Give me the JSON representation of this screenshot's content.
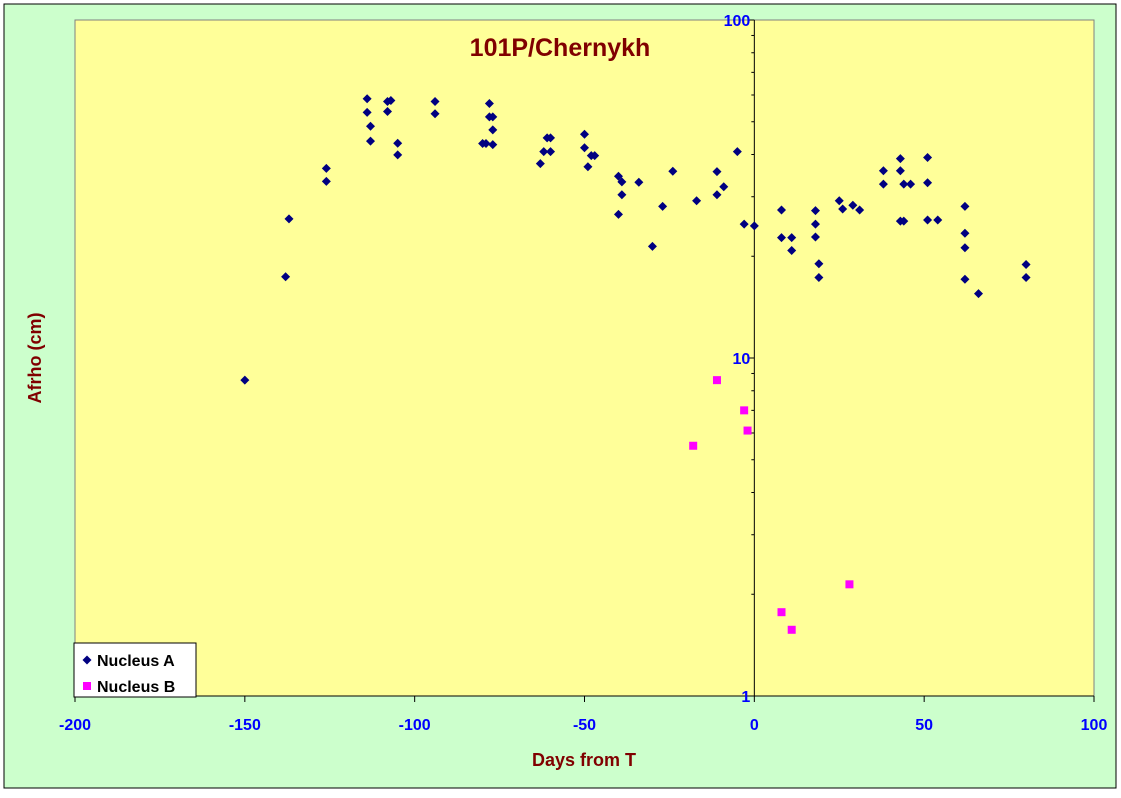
{
  "chart_data": {
    "type": "scatter",
    "title": "101P/Chernykh",
    "xlabel": "Days from T",
    "ylabel": "Afrho (cm)",
    "xlim": [
      -200,
      100
    ],
    "ylim": [
      1,
      100
    ],
    "yscale": "log",
    "x_ticks": [
      -200,
      -150,
      -100,
      -50,
      0,
      50,
      100
    ],
    "y_ticks": [
      1,
      10,
      100
    ],
    "grid": false,
    "legend_position": "bottom-left",
    "colors": {
      "outer_background": "#ccffcc",
      "plot_background": "#ffff99",
      "title": "#800000",
      "axis_label": "#800000",
      "tick_label": "#0000ff",
      "nucleus_a": "#000080",
      "nucleus_b": "#ff00ff"
    },
    "series": [
      {
        "name": "Nucleus A",
        "marker": "diamond",
        "points": [
          [
            -150,
            8.6
          ],
          [
            -138,
            17.4
          ],
          [
            -137,
            25.8
          ],
          [
            -126,
            33.3
          ],
          [
            -126,
            36.4
          ],
          [
            -114,
            58.5
          ],
          [
            -114,
            53.3
          ],
          [
            -113,
            48.5
          ],
          [
            -113,
            43.8
          ],
          [
            -108,
            57.4
          ],
          [
            -108,
            53.6
          ],
          [
            -107,
            57.8
          ],
          [
            -105,
            43.2
          ],
          [
            -105,
            39.9
          ],
          [
            -94,
            57.4
          ],
          [
            -94,
            52.8
          ],
          [
            -80,
            43.1
          ],
          [
            -79,
            43.1
          ],
          [
            -78,
            56.6
          ],
          [
            -78,
            51.7
          ],
          [
            -77,
            51.7
          ],
          [
            -77,
            47.3
          ],
          [
            -77,
            42.8
          ],
          [
            -63,
            37.6
          ],
          [
            -62,
            40.8
          ],
          [
            -61,
            44.8
          ],
          [
            -60,
            40.8
          ],
          [
            -60,
            44.8
          ],
          [
            -50,
            45.9
          ],
          [
            -50,
            41.9
          ],
          [
            -49,
            36.8
          ],
          [
            -48,
            39.7
          ],
          [
            -47,
            39.7
          ],
          [
            -40,
            34.5
          ],
          [
            -39,
            33.2
          ],
          [
            -39,
            30.4
          ],
          [
            -40,
            26.6
          ],
          [
            -34,
            33.1
          ],
          [
            -30,
            21.4
          ],
          [
            -27,
            28.1
          ],
          [
            -24,
            35.7
          ],
          [
            -17,
            29.2
          ],
          [
            -11,
            35.6
          ],
          [
            -11,
            30.4
          ],
          [
            -9,
            32.1
          ],
          [
            -5,
            40.8
          ],
          [
            -3,
            24.9
          ],
          [
            0,
            24.6
          ],
          [
            8,
            27.4
          ],
          [
            8,
            22.7
          ],
          [
            11,
            22.7
          ],
          [
            11,
            20.8
          ],
          [
            18,
            27.3
          ],
          [
            18,
            24.9
          ],
          [
            18,
            22.8
          ],
          [
            19,
            19.0
          ],
          [
            19,
            17.3
          ],
          [
            25,
            29.2
          ],
          [
            26,
            27.6
          ],
          [
            29,
            28.3
          ],
          [
            31,
            27.4
          ],
          [
            38,
            35.8
          ],
          [
            38,
            32.7
          ],
          [
            43,
            25.4
          ],
          [
            43,
            38.9
          ],
          [
            43,
            35.8
          ],
          [
            44,
            32.7
          ],
          [
            44,
            25.4
          ],
          [
            46,
            32.7
          ],
          [
            51,
            39.2
          ],
          [
            51,
            33.0
          ],
          [
            51,
            25.6
          ],
          [
            54,
            25.6
          ],
          [
            62,
            28.1
          ],
          [
            62,
            23.4
          ],
          [
            62,
            21.2
          ],
          [
            62,
            17.1
          ],
          [
            66,
            15.5
          ],
          [
            80,
            18.9
          ],
          [
            80,
            17.3
          ]
        ]
      },
      {
        "name": "Nucleus B",
        "marker": "square",
        "points": [
          [
            -18,
            5.5
          ],
          [
            -11,
            8.6
          ],
          [
            -3,
            7.0
          ],
          [
            -2,
            6.1
          ],
          [
            8,
            1.77
          ],
          [
            28,
            2.14
          ],
          [
            11,
            1.57
          ]
        ]
      }
    ]
  }
}
